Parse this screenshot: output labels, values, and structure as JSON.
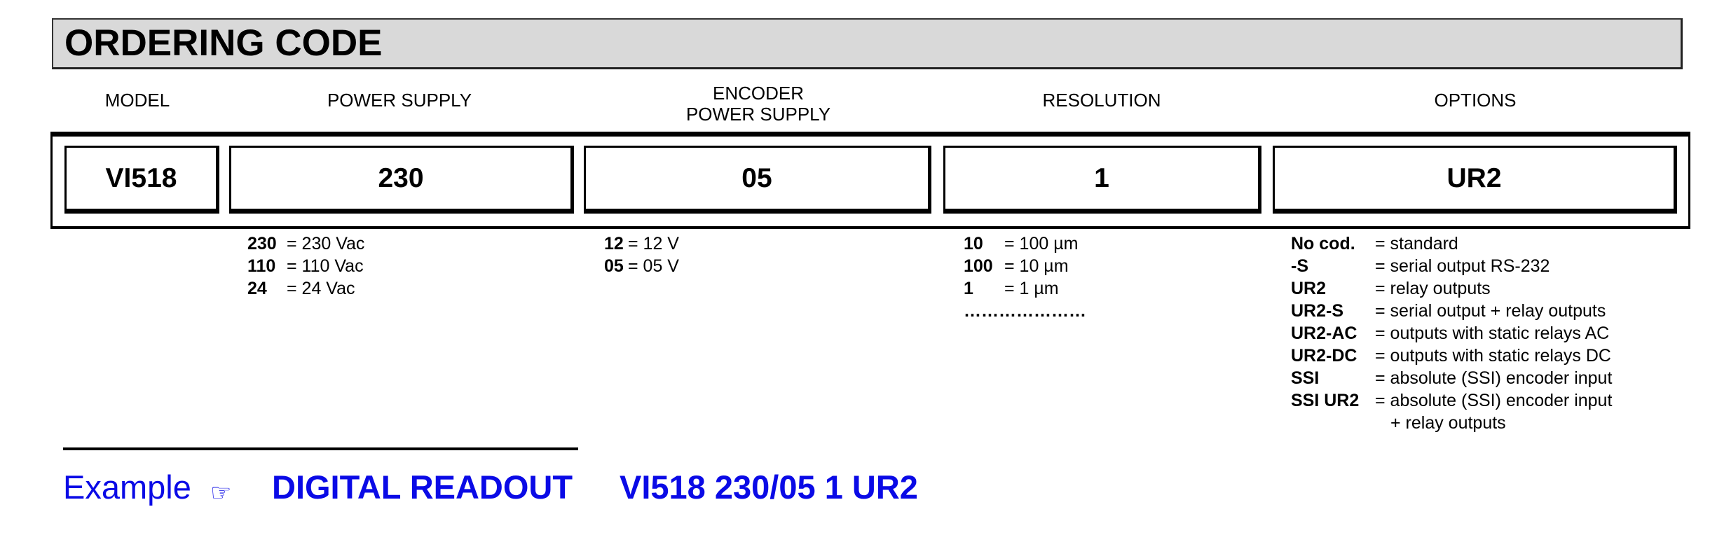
{
  "header": {
    "title": "ORDERING CODE"
  },
  "columns": {
    "model": "MODEL",
    "power_supply": "POWER SUPPLY",
    "encoder_line1": "ENCODER",
    "encoder_line2": "POWER SUPPLY",
    "resolution": "RESOLUTION",
    "options": "OPTIONS"
  },
  "code": {
    "model": "VI518",
    "power_supply": "230",
    "encoder": "05",
    "resolution": "1",
    "options": "UR2"
  },
  "power_supply_list": [
    {
      "code": "230",
      "desc": "= 230 Vac"
    },
    {
      "code": "110",
      "desc": "= 110 Vac"
    },
    {
      "code": "24",
      "desc": "=   24 Vac"
    }
  ],
  "encoder_list": [
    {
      "code": "12",
      "desc": "= 12 V"
    },
    {
      "code": "05",
      "desc": "= 05 V"
    }
  ],
  "resolution_list": [
    {
      "code": "10",
      "desc": "= 100 µm"
    },
    {
      "code": "100",
      "desc": "= 10 µm"
    },
    {
      "code": "1",
      "desc": "= 1 µm"
    },
    {
      "code": "…………………",
      "desc": ""
    }
  ],
  "options_list": [
    {
      "code": "No cod.",
      "desc": "= standard"
    },
    {
      "code": "-S",
      "desc": "= serial output RS-232"
    },
    {
      "code": "UR2",
      "desc": "= relay outputs"
    },
    {
      "code": "UR2-S",
      "desc": "= serial output + relay outputs"
    },
    {
      "code": "UR2-AC",
      "desc": "= outputs with static relays AC"
    },
    {
      "code": "UR2-DC",
      "desc": "= outputs with static relays DC"
    },
    {
      "code": "SSI",
      "desc": "= absolute (SSI) encoder input"
    },
    {
      "code": "SSI UR2",
      "desc": "= absolute (SSI) encoder input"
    },
    {
      "code": "",
      "desc": "+ relay outputs"
    }
  ],
  "example": {
    "label": "Example",
    "icon": "pointing-hand-icon",
    "product": "DIGITAL READOUT",
    "code": "VI518 230/05 1 UR2",
    "color": "#0a0ae6"
  }
}
